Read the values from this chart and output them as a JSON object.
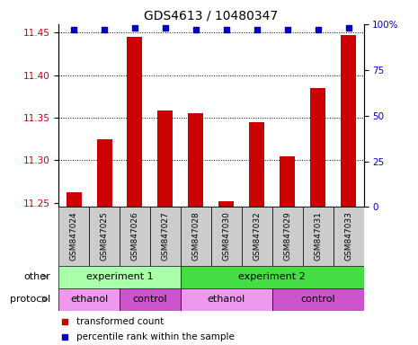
{
  "title": "GDS4613 / 10480347",
  "samples": [
    "GSM847024",
    "GSM847025",
    "GSM847026",
    "GSM847027",
    "GSM847028",
    "GSM847030",
    "GSM847032",
    "GSM847029",
    "GSM847031",
    "GSM847033"
  ],
  "transformed_count": [
    11.262,
    11.325,
    11.445,
    11.358,
    11.355,
    11.252,
    11.345,
    11.305,
    11.385,
    11.447
  ],
  "percentile_rank": [
    97,
    97,
    98,
    98,
    97,
    97,
    97,
    97,
    97,
    98
  ],
  "ylim_left": [
    11.245,
    11.46
  ],
  "ylim_right": [
    0,
    100
  ],
  "yticks_left": [
    11.25,
    11.3,
    11.35,
    11.4,
    11.45
  ],
  "yticks_right": [
    0,
    25,
    50,
    75,
    100
  ],
  "bar_color": "#cc0000",
  "dot_color": "#0000cc",
  "left_tick_color": "#cc0000",
  "right_tick_color": "#0000cc",
  "annotation_rows": [
    {
      "label": "other",
      "segments": [
        {
          "text": "experiment 1",
          "start": 0,
          "end": 4,
          "color": "#aaffaa"
        },
        {
          "text": "experiment 2",
          "start": 4,
          "end": 10,
          "color": "#44dd44"
        }
      ]
    },
    {
      "label": "protocol",
      "segments": [
        {
          "text": "ethanol",
          "start": 0,
          "end": 2,
          "color": "#ee99ee"
        },
        {
          "text": "control",
          "start": 2,
          "end": 4,
          "color": "#cc55cc"
        },
        {
          "text": "ethanol",
          "start": 4,
          "end": 7,
          "color": "#ee99ee"
        },
        {
          "text": "control",
          "start": 7,
          "end": 10,
          "color": "#cc55cc"
        }
      ]
    }
  ],
  "legend_items": [
    {
      "label": "transformed count",
      "color": "#cc0000"
    },
    {
      "label": "percentile rank within the sample",
      "color": "#0000cc"
    }
  ],
  "background_color": "#ffffff",
  "bar_bottom": 11.245,
  "sample_box_color": "#cccccc"
}
